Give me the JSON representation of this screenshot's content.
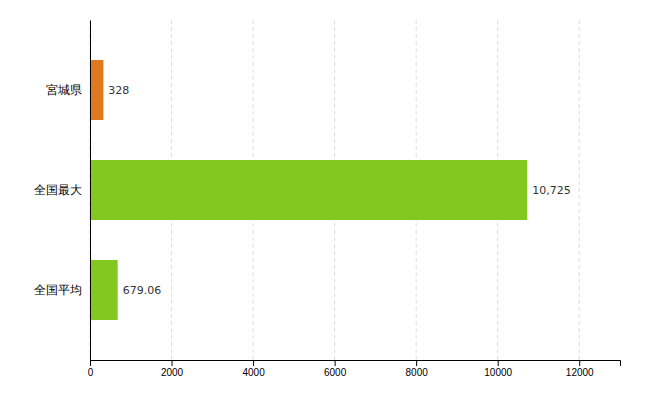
{
  "chart_data": {
    "type": "bar",
    "orientation": "horizontal",
    "categories": [
      "宮城県",
      "全国最大",
      "全国平均"
    ],
    "values": [
      328,
      10725,
      679.06
    ],
    "value_labels": [
      "328",
      "10,725",
      "679.06"
    ],
    "colors": [
      "#e07820",
      "#82c820",
      "#82c820"
    ],
    "xlim": [
      0,
      13000
    ],
    "xticks": [
      0,
      2000,
      4000,
      6000,
      8000,
      10000,
      12000
    ],
    "grid": true,
    "data_labels": true
  }
}
